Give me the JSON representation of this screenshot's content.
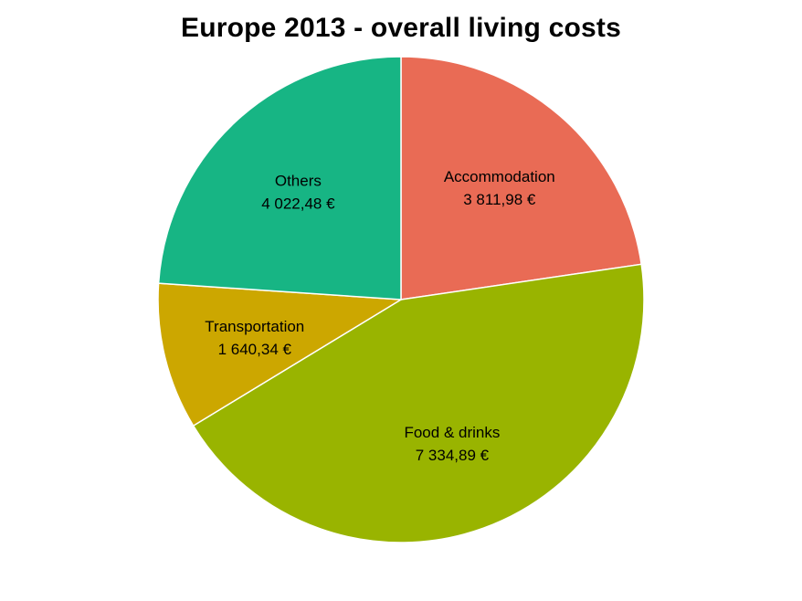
{
  "chart_data": {
    "type": "pie",
    "title": "Europe 2013 - overall living costs",
    "slices": [
      {
        "label": "Accommodation",
        "value": 3811.98,
        "value_label": "3 811,98 €",
        "color": "#E96B55"
      },
      {
        "label": "Food & drinks",
        "value": 7334.89,
        "value_label": "7 334,89 €",
        "color": "#99B400"
      },
      {
        "label": "Transportation",
        "value": 1640.34,
        "value_label": "1 640,34 €",
        "color": "#CCA700"
      },
      {
        "label": "Others",
        "value": 4022.48,
        "value_label": "4 022,48 €",
        "color": "#17B584"
      }
    ],
    "start": "12 o'clock",
    "direction": "clockwise",
    "legend": "none"
  }
}
